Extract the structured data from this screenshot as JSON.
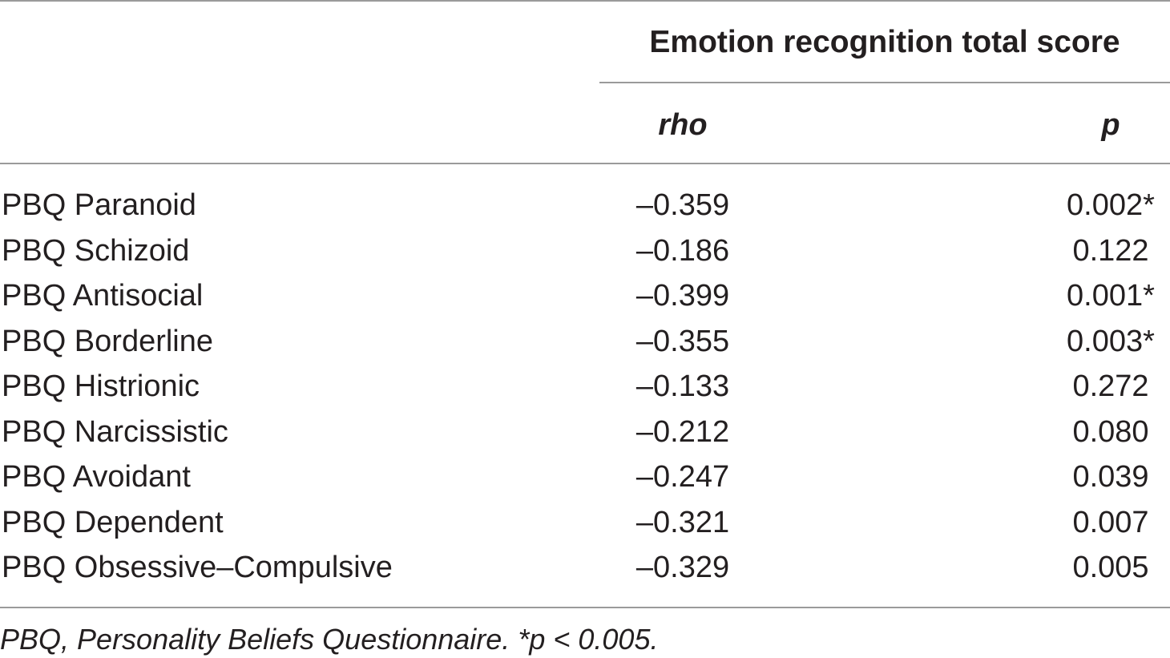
{
  "table": {
    "group_header": "Emotion recognition total score",
    "columns": {
      "rho": "rho",
      "p": "p"
    },
    "rows": [
      {
        "label": "PBQ Paranoid",
        "rho": "–0.359",
        "p": "0.002*"
      },
      {
        "label": "PBQ Schizoid",
        "rho": "–0.186",
        "p": "0.122"
      },
      {
        "label": "PBQ Antisocial",
        "rho": "–0.399",
        "p": "0.001*"
      },
      {
        "label": "PBQ Borderline",
        "rho": "–0.355",
        "p": "0.003*"
      },
      {
        "label": "PBQ Histrionic",
        "rho": "–0.133",
        "p": "0.272"
      },
      {
        "label": "PBQ Narcissistic",
        "rho": "–0.212",
        "p": "0.080"
      },
      {
        "label": "PBQ Avoidant",
        "rho": "–0.247",
        "p": "0.039"
      },
      {
        "label": "PBQ Dependent",
        "rho": "–0.321",
        "p": "0.007"
      },
      {
        "label": "PBQ Obsessive–Compulsive",
        "rho": "–0.329",
        "p": "0.005"
      }
    ],
    "footnote": "PBQ, Personality Beliefs Questionnaire. *p < 0.005."
  }
}
